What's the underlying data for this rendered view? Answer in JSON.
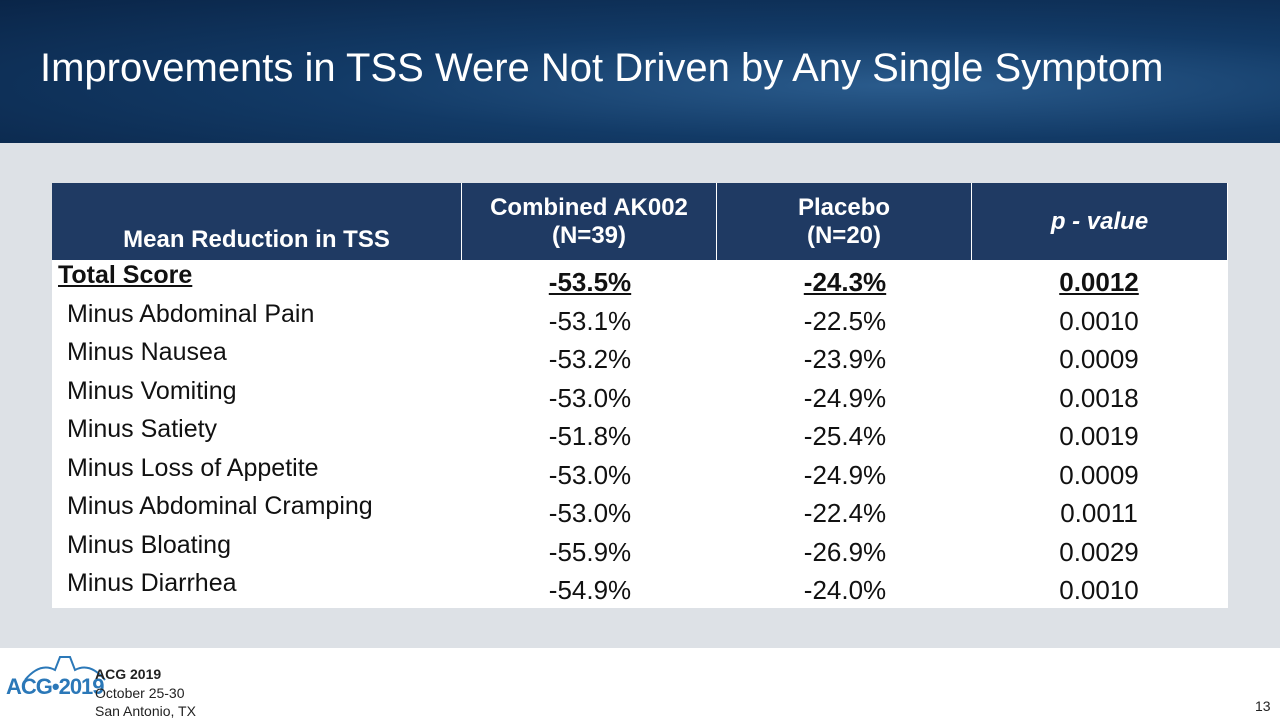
{
  "title": "Improvements in TSS Were Not Driven by Any Single Symptom",
  "table": {
    "header": [
      [
        "Mean Reduction in TSS"
      ],
      [
        "Combined AK002",
        "(N=39)"
      ],
      [
        "Placebo",
        "(N=20)"
      ],
      [
        "p - value"
      ]
    ],
    "rows": [
      [
        "Total Score",
        "-53.5%",
        "-24.3%",
        "0.0012"
      ],
      [
        "Minus Abdominal Pain",
        "-53.1%",
        "-22.5%",
        "0.0010"
      ],
      [
        "Minus Nausea",
        "-53.2%",
        "-23.9%",
        "0.0009"
      ],
      [
        "Minus Vomiting",
        "-53.0%",
        "-24.9%",
        "0.0018"
      ],
      [
        "Minus Satiety",
        "-51.8%",
        "-25.4%",
        "0.0019"
      ],
      [
        "Minus Loss of Appetite",
        "-53.0%",
        "-24.9%",
        "0.0009"
      ],
      [
        "Minus Abdominal Cramping",
        "-53.0%",
        "-22.4%",
        "0.0011"
      ],
      [
        "Minus Bloating",
        "-55.9%",
        "-26.9%",
        "0.0029"
      ],
      [
        "Minus Diarrhea",
        "-54.9%",
        "-24.0%",
        "0.0010"
      ]
    ]
  },
  "footer": {
    "logo": "ACG•2019",
    "event": "ACG 2019",
    "dates": "October 25-30",
    "location": "San Antonio, TX",
    "page": "13"
  }
}
